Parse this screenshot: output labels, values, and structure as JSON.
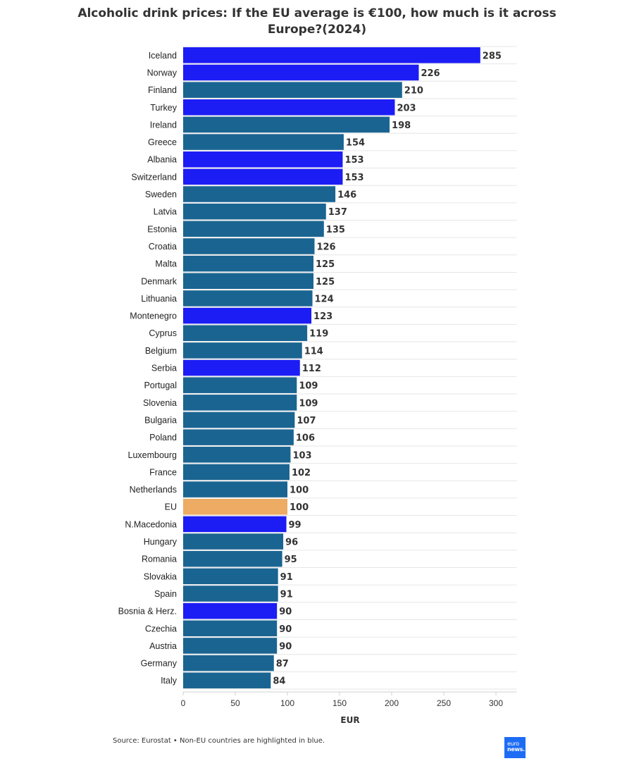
{
  "chart_data": {
    "type": "bar",
    "orientation": "horizontal",
    "title": "Alcoholic drink prices: If the EU average is €100, how much is it across Europe?(2024)",
    "xlabel": "EUR",
    "xlim": [
      0,
      320
    ],
    "xticks": [
      0,
      50,
      100,
      150,
      200,
      250,
      300
    ],
    "grid": true,
    "categories": [
      "Iceland",
      "Norway",
      "Finland",
      "Turkey",
      "Ireland",
      "Greece",
      "Albania",
      "Switzerland",
      "Sweden",
      "Latvia",
      "Estonia",
      "Croatia",
      "Malta",
      "Denmark",
      "Lithuania",
      "Montenegro",
      "Cyprus",
      "Belgium",
      "Serbia",
      "Portugal",
      "Slovenia",
      "Bulgaria",
      "Poland",
      "Luxembourg",
      "France",
      "Netherlands",
      "EU",
      "N.Macedonia",
      "Hungary",
      "Romania",
      "Slovakia",
      "Spain",
      "Bosnia & Herz.",
      "Czechia",
      "Austria",
      "Germany",
      "Italy"
    ],
    "values": [
      285,
      226,
      210,
      203,
      198,
      154,
      153,
      153,
      146,
      137,
      135,
      126,
      125,
      125,
      124,
      123,
      119,
      114,
      112,
      109,
      109,
      107,
      106,
      103,
      102,
      100,
      100,
      99,
      96,
      95,
      91,
      91,
      90,
      90,
      90,
      87,
      84
    ],
    "group": [
      "non-eu",
      "non-eu",
      "eu",
      "non-eu",
      "eu",
      "eu",
      "non-eu",
      "non-eu",
      "eu",
      "eu",
      "eu",
      "eu",
      "eu",
      "eu",
      "eu",
      "non-eu",
      "eu",
      "eu",
      "non-eu",
      "eu",
      "eu",
      "eu",
      "eu",
      "eu",
      "eu",
      "eu",
      "average",
      "non-eu",
      "eu",
      "eu",
      "eu",
      "eu",
      "non-eu",
      "eu",
      "eu",
      "eu",
      "eu"
    ],
    "colors": {
      "eu": "#1a6491",
      "non-eu": "#1c1cf5",
      "average": "#eeab64"
    }
  },
  "footer": {
    "source": "Source: Eurostat • Non-EU countries are highlighted in blue.",
    "logo_line1": "euro",
    "logo_line2": "news."
  }
}
